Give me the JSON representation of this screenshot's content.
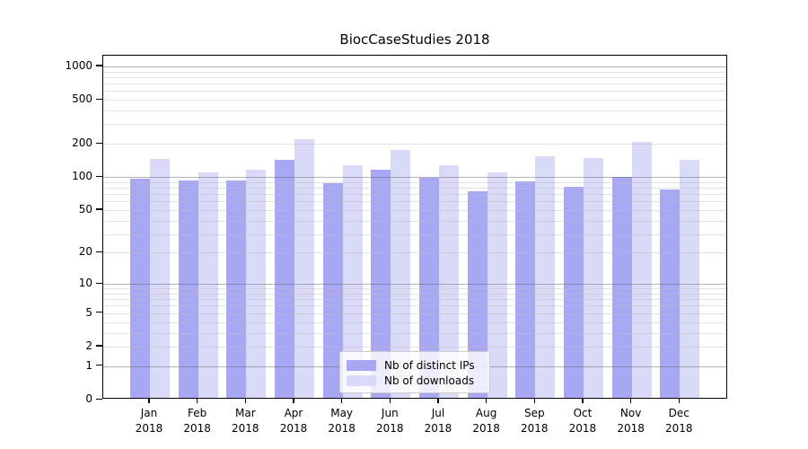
{
  "chart_data": {
    "type": "bar",
    "title": "BiocCaseStudies 2018",
    "year_label": "2018",
    "categories": [
      "Jan",
      "Feb",
      "Mar",
      "Apr",
      "May",
      "Jun",
      "Jul",
      "Aug",
      "Sep",
      "Oct",
      "Nov",
      "Dec"
    ],
    "series": [
      {
        "name": "Nb of distinct IPs",
        "color": "#a7a7f4",
        "values": [
          93,
          89,
          90,
          137,
          85,
          112,
          94,
          71,
          88,
          78,
          97,
          74
        ]
      },
      {
        "name": "Nb of downloads",
        "color": "#d9d9f8",
        "values": [
          140,
          106,
          112,
          214,
          124,
          170,
          123,
          106,
          148,
          142,
          200,
          137
        ]
      }
    ],
    "y_axis": {
      "scale": "log1p",
      "tick_values": [
        0,
        1,
        2,
        5,
        10,
        20,
        50,
        100,
        200,
        500,
        1000
      ],
      "major_grid_values": [
        1,
        10,
        100,
        1000
      ],
      "range": [
        0,
        1000
      ]
    },
    "grid": true,
    "legend_position": "lower center"
  }
}
